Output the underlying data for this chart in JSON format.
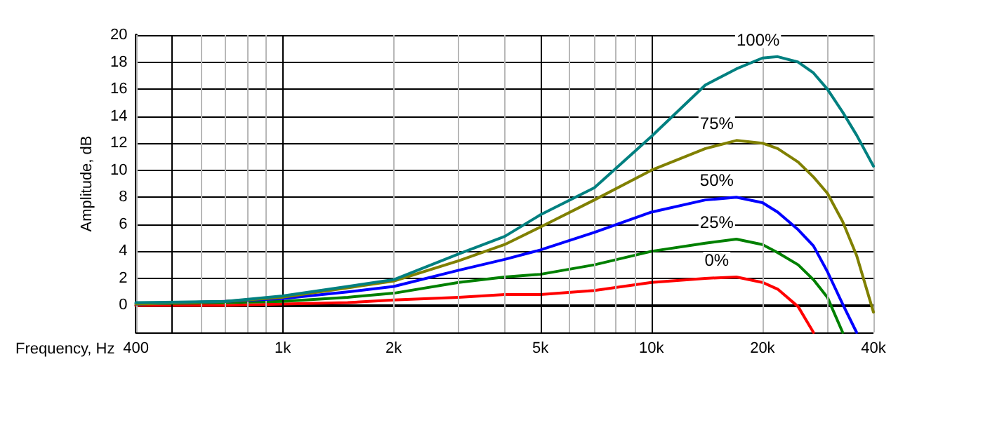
{
  "chart_data": {
    "type": "line",
    "xlabel": "Frequency, Hz",
    "ylabel": "Amplitude, dB",
    "log": "x",
    "grid": true,
    "line_style": "solid",
    "marker": "none",
    "xlim": [
      400,
      40000
    ],
    "ylim": [
      -2,
      20
    ],
    "xticks": [
      400,
      {
        "value": 500,
        "label": null
      },
      {
        "value": 600,
        "label": null
      },
      {
        "value": 700,
        "label": null
      },
      {
        "value": 800,
        "label": null
      },
      {
        "value": 900,
        "label": null
      },
      {
        "value": 1000,
        "label": "1k"
      },
      {
        "value": 2000,
        "label": "2k"
      },
      {
        "value": 3000,
        "label": null
      },
      {
        "value": 4000,
        "label": null
      },
      {
        "value": 5000,
        "label": "5k"
      },
      {
        "value": 6000,
        "label": null
      },
      {
        "value": 7000,
        "label": null
      },
      {
        "value": 8000,
        "label": null
      },
      {
        "value": 9000,
        "label": null
      },
      {
        "value": 10000,
        "label": "10k"
      },
      {
        "value": 20000,
        "label": "20k"
      },
      {
        "value": 30000,
        "label": null
      },
      {
        "value": 40000,
        "label": "40k"
      }
    ],
    "yticks": [
      {
        "value": -2,
        "label": null
      },
      0,
      2,
      4,
      6,
      8,
      10,
      12,
      14,
      16,
      18,
      20
    ],
    "x": [
      400,
      700,
      1000,
      1500,
      2000,
      3000,
      4000,
      5000,
      7000,
      10000,
      14000,
      17000,
      20000,
      22000,
      25000,
      27500,
      30000,
      33000,
      36000,
      40000
    ],
    "series": [
      {
        "name": "0%",
        "color": "#ff0000",
        "values": [
          0.0,
          0.0,
          0.1,
          0.2,
          0.4,
          0.6,
          0.8,
          0.8,
          1.1,
          1.7,
          2.0,
          2.1,
          1.7,
          1.2,
          -0.1,
          -2.0,
          null,
          null,
          null,
          null
        ]
      },
      {
        "name": "25%",
        "color": "#008000",
        "values": [
          0.1,
          0.2,
          0.3,
          0.6,
          0.9,
          1.7,
          2.1,
          2.3,
          3.0,
          4.0,
          4.6,
          4.9,
          4.5,
          3.9,
          3.0,
          1.9,
          0.6,
          -2.0,
          null,
          null
        ]
      },
      {
        "name": "50%",
        "color": "#0000ff",
        "values": [
          0.1,
          0.3,
          0.5,
          1.0,
          1.4,
          2.6,
          3.4,
          4.1,
          5.4,
          6.9,
          7.8,
          8.0,
          7.6,
          6.9,
          5.6,
          4.4,
          2.5,
          0.1,
          -2.0,
          null
        ]
      },
      {
        "name": "75%",
        "color": "#808000",
        "values": [
          0.1,
          0.3,
          0.6,
          1.3,
          1.8,
          3.3,
          4.5,
          5.8,
          7.8,
          10.0,
          11.6,
          12.2,
          12.0,
          11.6,
          10.6,
          9.5,
          8.3,
          6.2,
          3.7,
          -0.5
        ]
      },
      {
        "name": "100%",
        "color": "#008080",
        "values": [
          0.2,
          0.3,
          0.7,
          1.4,
          1.9,
          3.8,
          5.1,
          6.7,
          8.7,
          12.5,
          16.3,
          17.5,
          18.3,
          18.4,
          18.0,
          17.2,
          16.0,
          14.3,
          12.6,
          10.3
        ]
      }
    ]
  }
}
